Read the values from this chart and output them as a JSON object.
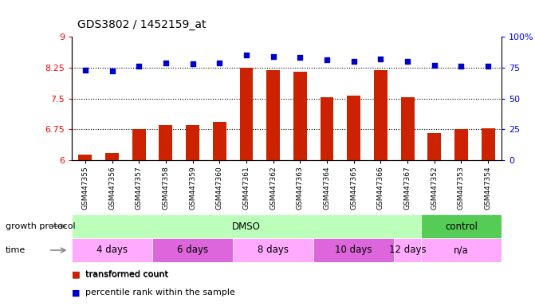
{
  "title": "GDS3802 / 1452159_at",
  "samples": [
    "GSM447355",
    "GSM447356",
    "GSM447357",
    "GSM447358",
    "GSM447359",
    "GSM447360",
    "GSM447361",
    "GSM447362",
    "GSM447363",
    "GSM447364",
    "GSM447365",
    "GSM447366",
    "GSM447367",
    "GSM447352",
    "GSM447353",
    "GSM447354"
  ],
  "bar_values": [
    6.13,
    6.17,
    6.75,
    6.85,
    6.85,
    6.93,
    8.25,
    8.18,
    8.15,
    7.52,
    7.57,
    8.18,
    7.52,
    6.65,
    6.75,
    6.78
  ],
  "dot_values": [
    73,
    72,
    76,
    79,
    78,
    79,
    85,
    84,
    83,
    81,
    80,
    82,
    80,
    77,
    76,
    76
  ],
  "bar_color": "#cc2200",
  "dot_color": "#0000cc",
  "ylim_left": [
    6,
    9
  ],
  "ylim_right": [
    0,
    100
  ],
  "yticks_left": [
    6,
    6.75,
    7.5,
    8.25,
    9
  ],
  "yticks_right": [
    0,
    25,
    50,
    75,
    100
  ],
  "ytick_labels_right": [
    "0",
    "25",
    "50",
    "75",
    "100%"
  ],
  "hlines": [
    6.75,
    7.5,
    8.25
  ],
  "gp_groups": [
    {
      "label": "DMSO",
      "start": 0,
      "end": 13,
      "color": "#bbffbb"
    },
    {
      "label": "control",
      "start": 13,
      "end": 16,
      "color": "#55cc55"
    }
  ],
  "time_groups": [
    {
      "label": "4 days",
      "start": 0,
      "end": 3,
      "color": "#ffaaff"
    },
    {
      "label": "6 days",
      "start": 3,
      "end": 6,
      "color": "#dd66dd"
    },
    {
      "label": "8 days",
      "start": 6,
      "end": 9,
      "color": "#ffaaff"
    },
    {
      "label": "10 days",
      "start": 9,
      "end": 12,
      "color": "#dd66dd"
    },
    {
      "label": "12 days",
      "start": 12,
      "end": 13,
      "color": "#ffaaff"
    },
    {
      "label": "n/a",
      "start": 13,
      "end": 16,
      "color": "#ffaaff"
    }
  ],
  "xlabel_growth": "growth protocol",
  "xlabel_time": "time",
  "bar_width": 0.5,
  "background_color": "#ffffff",
  "plot_bg": "#ffffff"
}
